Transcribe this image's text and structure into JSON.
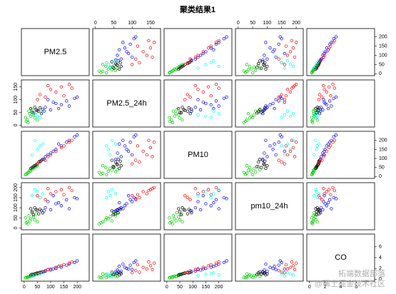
{
  "chart_data": {
    "type": "scatter-matrix",
    "title": "聚类结果1",
    "variables": [
      {
        "name": "PM2.5",
        "lim": [
          0,
          235
        ],
        "ticks": [
          0,
          50,
          100,
          150,
          200
        ]
      },
      {
        "name": "PM2.5_24h",
        "lim": [
          0,
          170
        ],
        "ticks": [
          0,
          50,
          100,
          150
        ]
      },
      {
        "name": "PM10",
        "lim": [
          0,
          240
        ],
        "ticks": [
          0,
          50,
          100,
          150,
          200
        ]
      },
      {
        "name": "pm10_24h",
        "lim": [
          0,
          215
        ],
        "ticks": [
          0,
          50,
          100,
          150,
          200
        ]
      },
      {
        "name": "CO",
        "lim": [
          0,
          8
        ],
        "ticks": [
          0,
          2,
          4,
          6
        ]
      }
    ],
    "series": [
      {
        "color": "#00cd00",
        "values": [
          [
            12,
            20,
            18,
            30,
            0.4
          ],
          [
            25,
            35,
            30,
            45,
            0.6
          ],
          [
            8,
            15,
            12,
            25,
            0.3
          ],
          [
            35,
            40,
            45,
            55,
            0.7
          ],
          [
            18,
            55,
            25,
            60,
            0.5
          ],
          [
            40,
            28,
            50,
            40,
            0.8
          ],
          [
            30,
            60,
            38,
            75,
            0.6
          ],
          [
            15,
            10,
            22,
            20,
            0.4
          ],
          [
            45,
            50,
            55,
            70,
            0.9
          ],
          [
            22,
            45,
            35,
            35,
            0.5
          ],
          [
            5,
            30,
            10,
            50,
            0.3
          ],
          [
            50,
            20,
            60,
            30,
            1.0
          ]
        ]
      },
      {
        "color": "#000000",
        "values": [
          [
            30,
            50,
            50,
            80,
            0.9
          ],
          [
            45,
            60,
            65,
            90,
            1.1
          ],
          [
            55,
            55,
            80,
            70,
            1.2
          ],
          [
            25,
            65,
            45,
            95,
            0.8
          ],
          [
            65,
            45,
            90,
            85,
            1.3
          ],
          [
            40,
            70,
            60,
            100,
            1.0
          ],
          [
            70,
            62,
            95,
            75,
            1.4
          ],
          [
            35,
            48,
            55,
            65,
            0.9
          ],
          [
            50,
            58,
            70,
            88,
            1.1
          ],
          [
            60,
            68,
            85,
            92,
            1.2
          ]
        ]
      },
      {
        "color": "#0000ff",
        "values": [
          [
            80,
            70,
            110,
            100,
            1.5
          ],
          [
            120,
            85,
            150,
            120,
            2.0
          ],
          [
            160,
            95,
            190,
            140,
            2.6
          ],
          [
            100,
            60,
            130,
            90,
            1.7
          ],
          [
            190,
            105,
            220,
            150,
            3.1
          ],
          [
            140,
            80,
            170,
            110,
            2.2
          ],
          [
            90,
            100,
            120,
            130,
            1.8
          ],
          [
            170,
            75,
            200,
            95,
            2.8
          ],
          [
            110,
            90,
            140,
            160,
            1.9
          ],
          [
            130,
            65,
            180,
            125,
            2.4
          ],
          [
            200,
            110,
            230,
            145,
            3.4
          ],
          [
            75,
            55,
            95,
            85,
            1.4
          ]
        ]
      },
      {
        "color": "#ff0000",
        "values": [
          [
            60,
            120,
            80,
            150,
            1.3
          ],
          [
            100,
            140,
            120,
            170,
            1.9
          ],
          [
            140,
            150,
            160,
            190,
            2.5
          ],
          [
            80,
            110,
            90,
            140,
            1.6
          ],
          [
            170,
            160,
            190,
            200,
            3.0
          ],
          [
            120,
            130,
            140,
            180,
            2.2
          ],
          [
            50,
            100,
            70,
            160,
            1.2
          ],
          [
            150,
            115,
            170,
            165,
            2.7
          ],
          [
            90,
            155,
            110,
            195,
            1.8
          ],
          [
            180,
            145,
            200,
            185,
            3.2
          ]
        ]
      },
      {
        "color": "#00ffff",
        "values": [
          [
            30,
            40,
            120,
            160,
            0.6
          ],
          [
            50,
            35,
            150,
            180,
            0.9
          ],
          [
            70,
            55,
            180,
            170,
            1.2
          ],
          [
            40,
            45,
            200,
            190,
            0.8
          ],
          [
            60,
            30,
            170,
            150,
            1.0
          ]
        ]
      }
    ]
  },
  "watermark": [
    "拓端数据部落",
    "@稀土掘金技术社区"
  ]
}
